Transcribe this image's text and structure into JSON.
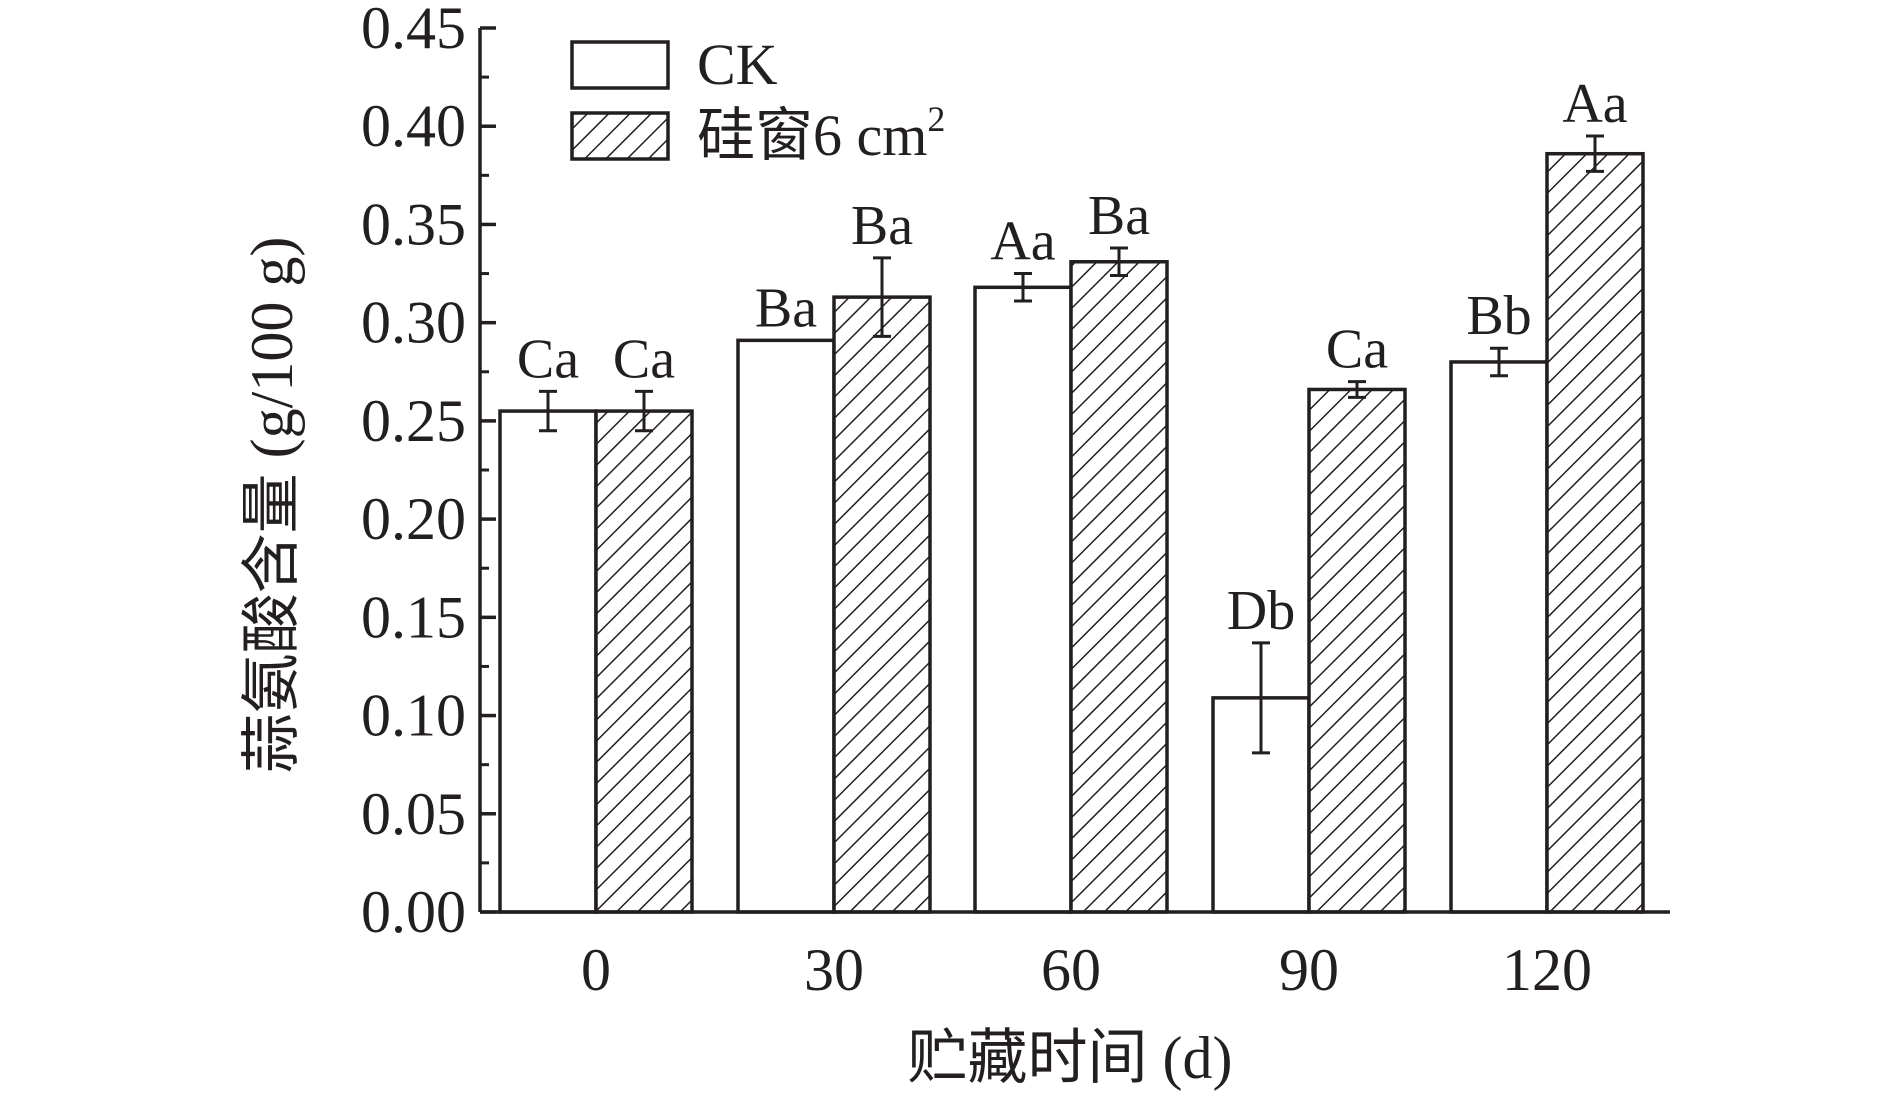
{
  "chart_data": {
    "type": "bar",
    "title": "",
    "xlabel": "贮藏时间 (d)",
    "ylabel": "蒜氨酸含量 (g/100 g)",
    "categories": [
      "0",
      "30",
      "60",
      "90",
      "120"
    ],
    "ylim": [
      0,
      0.45
    ],
    "yticks": [
      "0.00",
      "0.05",
      "0.10",
      "0.15",
      "0.20",
      "0.25",
      "0.30",
      "0.35",
      "0.40",
      "0.45"
    ],
    "grid": false,
    "legend_position": "top-left",
    "series": [
      {
        "name": "CK",
        "pattern": "none",
        "values": [
          0.255,
          0.291,
          0.318,
          0.109,
          0.28
        ],
        "errors": [
          0.01,
          0.0,
          0.007,
          0.028,
          0.007
        ],
        "labels": [
          "Ca",
          "Ba",
          "Aa",
          "Db",
          "Bb"
        ]
      },
      {
        "name": "硅窗6 cm",
        "name_superscript": "2",
        "pattern": "hatch",
        "values": [
          0.255,
          0.313,
          0.331,
          0.266,
          0.386
        ],
        "errors": [
          0.01,
          0.02,
          0.007,
          0.004,
          0.009
        ],
        "labels": [
          "Ca",
          "Ba",
          "Ba",
          "Ca",
          "Aa"
        ]
      }
    ],
    "colors": {
      "ink": "#231f20",
      "bar_fill": "#ffffff"
    }
  }
}
